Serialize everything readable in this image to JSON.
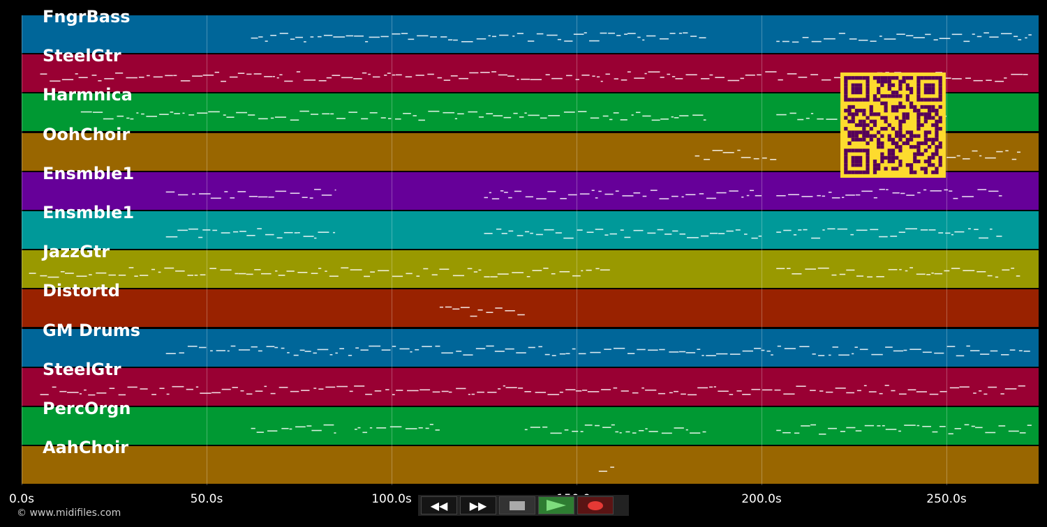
{
  "tracks": [
    {
      "name": "FngrBass",
      "color": "#006699"
    },
    {
      "name": "SteelGtr",
      "color": "#990033"
    },
    {
      "name": "Harmnica",
      "color": "#009933"
    },
    {
      "name": "OohChoir",
      "color": "#996600"
    },
    {
      "name": "Ensmble1",
      "color": "#660099"
    },
    {
      "name": "Ensmble1",
      "color": "#009999"
    },
    {
      "name": "JazzGtr",
      "color": "#999900"
    },
    {
      "name": "Distortd",
      "color": "#992200"
    },
    {
      "name": "GM Drums",
      "color": "#006699"
    },
    {
      "name": "SteelGtr",
      "color": "#990033"
    },
    {
      "name": "PercOrgn",
      "color": "#009933"
    },
    {
      "name": "AahChoir",
      "color": "#996600"
    }
  ],
  "axis": {
    "ticks": [
      "0.0s",
      "50.0s",
      "100.0s",
      "150.0s",
      "200.0s",
      "250.0s"
    ]
  },
  "copyright": "© www.midifiles.com",
  "transport": {
    "buttons": [
      "rewind",
      "fast-forward",
      "stop",
      "play",
      "record"
    ]
  },
  "colors": {
    "note": "#ffffff",
    "grid": "#ffffff",
    "qr_bg": "#fddb2e",
    "qr_fg": "#55005a",
    "play": "#2e7d32",
    "record": "#e53935"
  }
}
